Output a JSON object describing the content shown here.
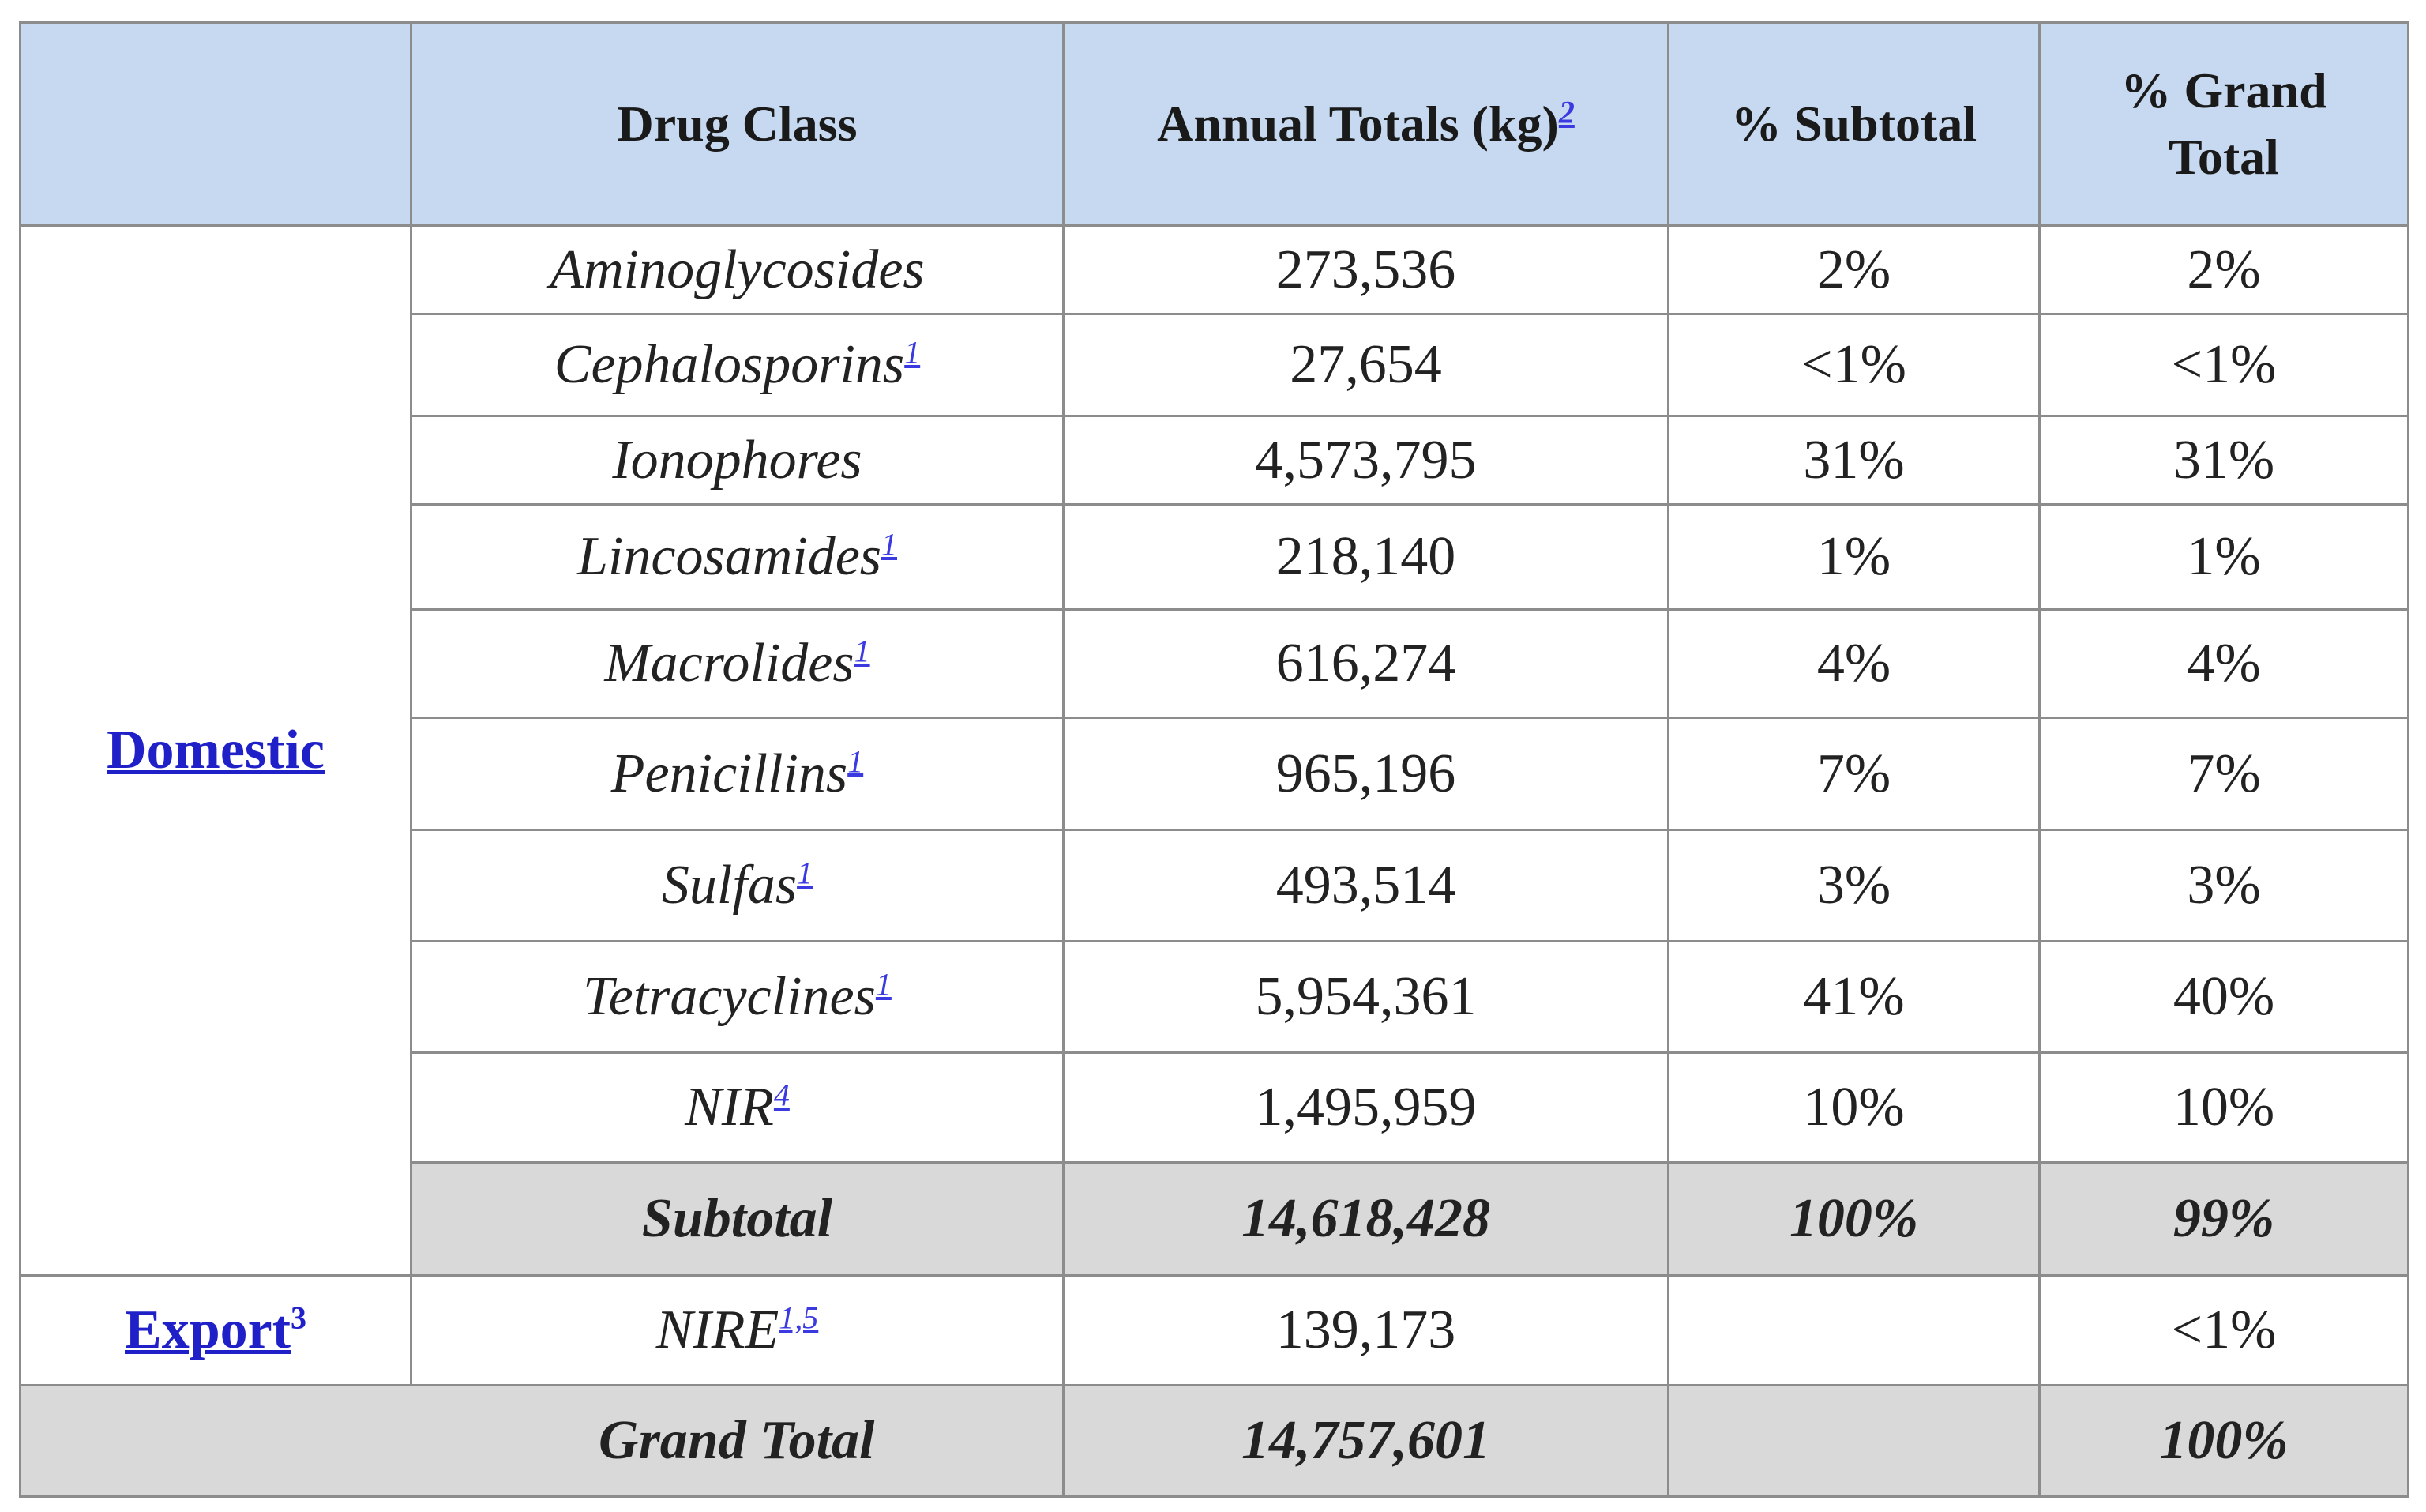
{
  "colors": {
    "header_bg": "#c6d9f0",
    "total_bg": "#d9d9d9",
    "link": "#2020c8"
  },
  "header": {
    "blank": "",
    "drug_class": "Drug Class",
    "annual_totals": "Annual Totals (kg)",
    "annual_totals_sup": "2",
    "pct_subtotal": "% Subtotal",
    "pct_grand_total": "% Grand Total"
  },
  "domestic": {
    "label": "Domestic",
    "rows": [
      {
        "name": "Aminoglycosides",
        "sup": "",
        "kg": "273,536",
        "sub": "2%",
        "grand": "2%"
      },
      {
        "name": "Cephalosporins",
        "sup": "1",
        "kg": "27,654",
        "sub": "<1%",
        "grand": "<1%"
      },
      {
        "name": "Ionophores",
        "sup": "",
        "kg": "4,573,795",
        "sub": "31%",
        "grand": "31%"
      },
      {
        "name": "Lincosamides",
        "sup": "1",
        "kg": "218,140",
        "sub": "1%",
        "grand": "1%"
      },
      {
        "name": "Macrolides",
        "sup": "1",
        "kg": "616,274",
        "sub": "4%",
        "grand": "4%"
      },
      {
        "name": "Penicillins",
        "sup": "1",
        "kg": "965,196",
        "sub": "7%",
        "grand": "7%"
      },
      {
        "name": "Sulfas",
        "sup": "1",
        "kg": "493,514",
        "sub": "3%",
        "grand": "3%"
      },
      {
        "name": "Tetracyclines",
        "sup": "1",
        "kg": "5,954,361",
        "sub": "41%",
        "grand": "40%"
      },
      {
        "name": "NIR",
        "sup": "4",
        "kg": "1,495,959",
        "sub": "10%",
        "grand": "10%"
      }
    ],
    "subtotal": {
      "label": "Subtotal",
      "kg": "14,618,428",
      "sub": "100%",
      "grand": "99%"
    }
  },
  "export": {
    "label": "Export",
    "label_sup": "3",
    "name": "NIRE",
    "sup": "1,5",
    "kg": "139,173",
    "sub": "",
    "grand": "<1%"
  },
  "grand_total": {
    "label": "Grand Total",
    "kg": "14,757,601",
    "sub": "",
    "grand": "100%"
  }
}
